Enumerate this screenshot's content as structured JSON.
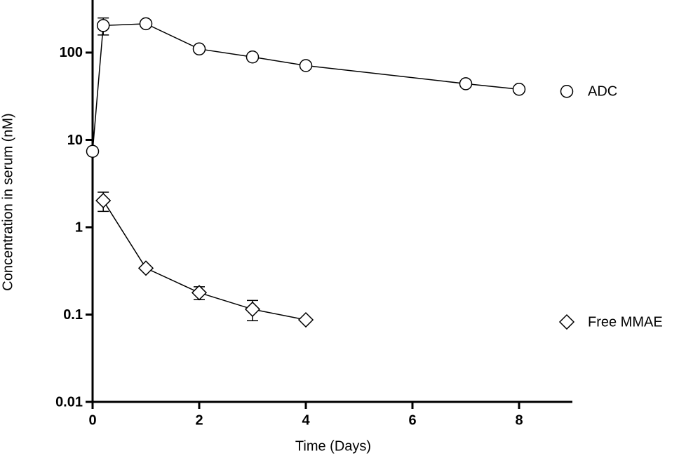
{
  "chart_data": {
    "type": "line",
    "x_label": "Time (Days)",
    "y_label": "Concentration in serum (nM)",
    "xlim": [
      0,
      9
    ],
    "ylim": [
      0.01,
      400
    ],
    "log_y": true,
    "xticks": [
      0,
      2,
      4,
      6,
      8
    ],
    "yticks": [
      0.01,
      0.1,
      1,
      10,
      100
    ],
    "legend": "right",
    "series": [
      {
        "name": "ADC",
        "color": "#000000",
        "marker": "circle",
        "x": [
          0,
          0.2,
          1,
          2,
          3,
          4,
          7,
          8
        ],
        "values": [
          7.4,
          204,
          214,
          110,
          89,
          71,
          44,
          38
        ],
        "errors": [
          null,
          45,
          null,
          null,
          null,
          null,
          null,
          null
        ]
      },
      {
        "name": "Free MMAE",
        "color": "#000000",
        "marker": "diamond",
        "x": [
          0.2,
          1,
          2,
          3,
          4
        ],
        "values": [
          2.02,
          0.34,
          0.178,
          0.115,
          0.087
        ],
        "errors": [
          0.5,
          null,
          0.03,
          0.03,
          null
        ]
      }
    ]
  }
}
